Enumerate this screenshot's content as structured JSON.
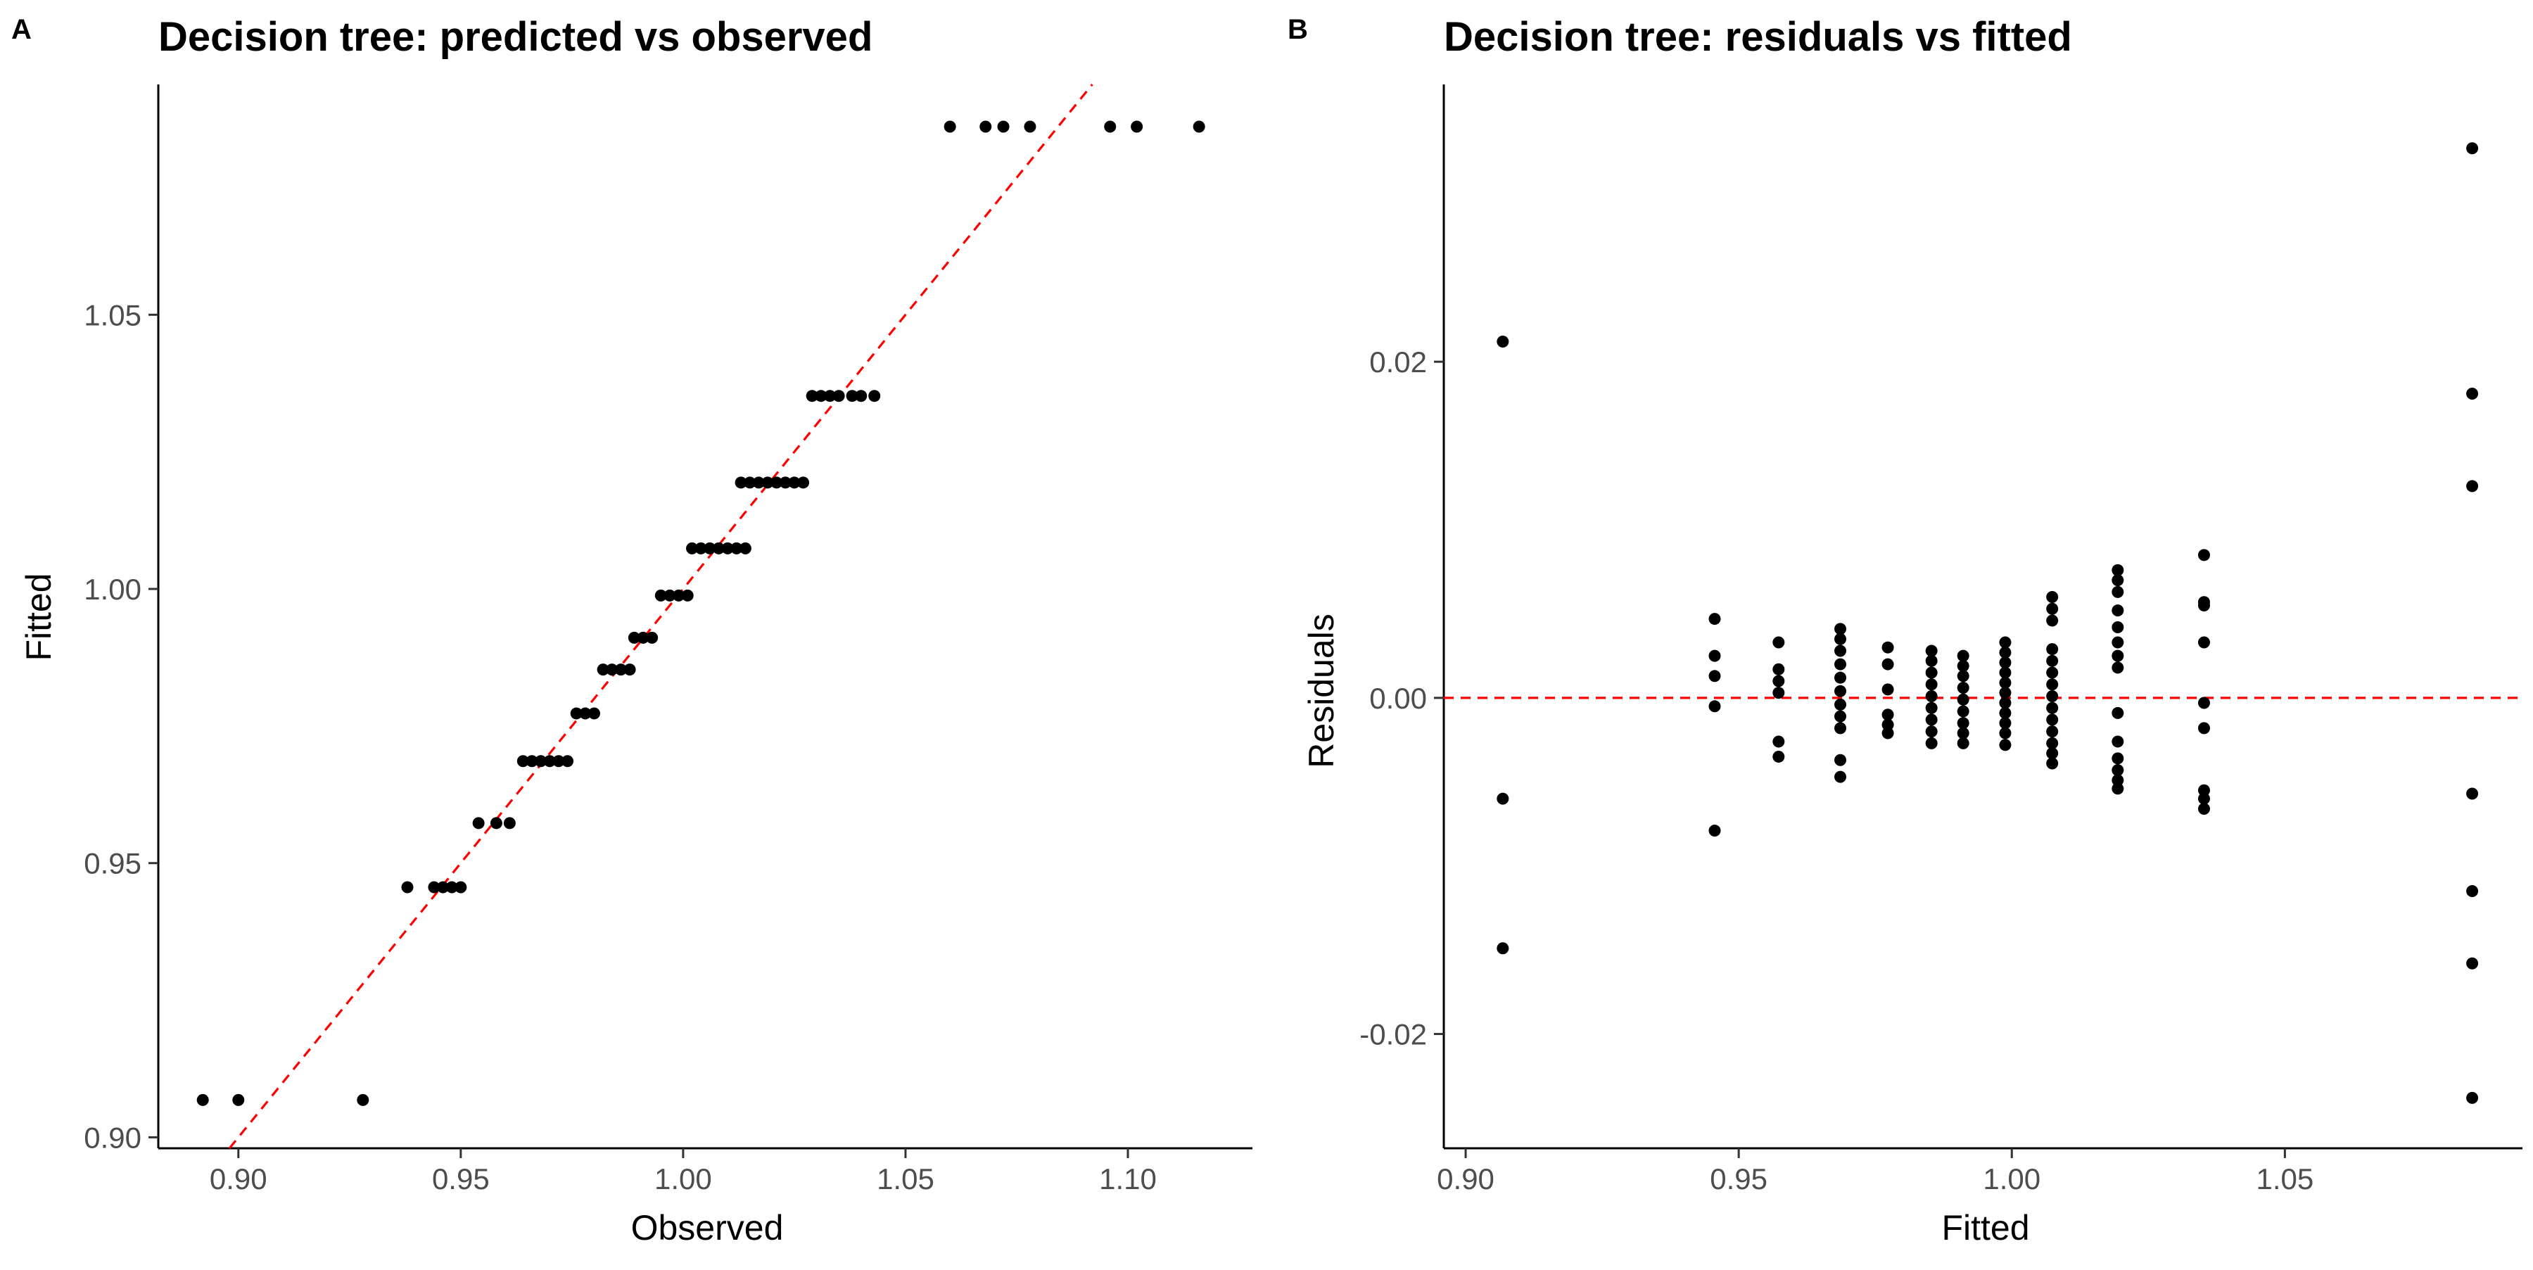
{
  "chart_data": [
    {
      "panel_label": "A",
      "type": "scatter",
      "title": "Decision tree: predicted vs observed",
      "xlabel": "Observed",
      "ylabel": "Fitted",
      "xlim": [
        0.882,
        1.128
      ],
      "ylim": [
        0.898,
        1.092
      ],
      "xticks": [
        0.9,
        0.95,
        1.0,
        1.05,
        1.1
      ],
      "xtick_labels": [
        "0.90",
        "0.95",
        "1.00",
        "1.05",
        "1.10"
      ],
      "yticks": [
        0.9,
        0.95,
        1.0,
        1.05
      ],
      "ytick_labels": [
        "0.90",
        "0.95",
        "1.00",
        "1.05"
      ],
      "grid": false,
      "reference_line": {
        "type": "identity",
        "color": "#ff0000",
        "dash": true
      },
      "series": [
        {
          "points": [
            [
              0.892,
              0.9068
            ],
            [
              0.9,
              0.9068
            ],
            [
              0.928,
              0.9068
            ],
            [
              0.938,
              0.9456
            ],
            [
              0.944,
              0.9456
            ],
            [
              0.946,
              0.9456
            ],
            [
              0.948,
              0.9456
            ],
            [
              0.95,
              0.9456
            ],
            [
              0.954,
              0.9573
            ],
            [
              0.958,
              0.9573
            ],
            [
              0.961,
              0.9573
            ],
            [
              0.964,
              0.9686
            ],
            [
              0.966,
              0.9686
            ],
            [
              0.968,
              0.9686
            ],
            [
              0.97,
              0.9686
            ],
            [
              0.972,
              0.9686
            ],
            [
              0.974,
              0.9686
            ],
            [
              0.976,
              0.9773
            ],
            [
              0.978,
              0.9773
            ],
            [
              0.98,
              0.9773
            ],
            [
              0.982,
              0.9853
            ],
            [
              0.984,
              0.9853
            ],
            [
              0.986,
              0.9853
            ],
            [
              0.988,
              0.9853
            ],
            [
              0.989,
              0.9911
            ],
            [
              0.991,
              0.9911
            ],
            [
              0.993,
              0.9911
            ],
            [
              0.995,
              0.9988
            ],
            [
              0.997,
              0.9988
            ],
            [
              0.999,
              0.9988
            ],
            [
              1.001,
              0.9988
            ],
            [
              1.002,
              1.0074
            ],
            [
              1.004,
              1.0074
            ],
            [
              1.006,
              1.0074
            ],
            [
              1.008,
              1.0074
            ],
            [
              1.01,
              1.0074
            ],
            [
              1.012,
              1.0074
            ],
            [
              1.014,
              1.0074
            ],
            [
              1.013,
              1.0194
            ],
            [
              1.015,
              1.0194
            ],
            [
              1.017,
              1.0194
            ],
            [
              1.019,
              1.0194
            ],
            [
              1.021,
              1.0194
            ],
            [
              1.023,
              1.0194
            ],
            [
              1.025,
              1.0194
            ],
            [
              1.027,
              1.0194
            ],
            [
              1.029,
              1.0352
            ],
            [
              1.031,
              1.0352
            ],
            [
              1.033,
              1.0352
            ],
            [
              1.035,
              1.0352
            ],
            [
              1.038,
              1.0352
            ],
            [
              1.04,
              1.0352
            ],
            [
              1.043,
              1.0352
            ],
            [
              1.06,
              1.0843
            ],
            [
              1.068,
              1.0843
            ],
            [
              1.072,
              1.0843
            ],
            [
              1.078,
              1.0843
            ],
            [
              1.096,
              1.0843
            ],
            [
              1.102,
              1.0843
            ],
            [
              1.116,
              1.0843
            ]
          ]
        }
      ]
    },
    {
      "panel_label": "B",
      "type": "scatter",
      "title": "Decision tree: residuals vs fitted",
      "xlabel": "Fitted",
      "ylabel": "Residuals",
      "xlim": [
        0.896,
        1.0935
      ],
      "ylim": [
        -0.0268,
        0.0365
      ],
      "xticks": [
        0.9,
        0.95,
        1.0,
        1.05
      ],
      "xtick_labels": [
        "0.90",
        "0.95",
        "1.00",
        "1.05"
      ],
      "yticks": [
        -0.02,
        0.0,
        0.02
      ],
      "ytick_labels": [
        "-0.02",
        "0.00",
        "0.02"
      ],
      "grid": false,
      "reference_line": {
        "type": "horizontal",
        "y": 0,
        "color": "#ff0000",
        "dash": true
      },
      "series": [
        {
          "points": [
            [
              0.9068,
              0.0212
            ],
            [
              0.9068,
              -0.006
            ],
            [
              0.9068,
              -0.0149
            ],
            [
              0.9456,
              0.0047
            ],
            [
              0.9456,
              0.0025
            ],
            [
              0.9456,
              0.0013
            ],
            [
              0.9456,
              -0.0005
            ],
            [
              0.9456,
              -0.0079
            ],
            [
              0.9573,
              0.0033
            ],
            [
              0.9573,
              0.0017
            ],
            [
              0.9573,
              0.001
            ],
            [
              0.9573,
              0.0003
            ],
            [
              0.9573,
              -0.0026
            ],
            [
              0.9573,
              -0.0035
            ],
            [
              0.9686,
              0.0041
            ],
            [
              0.9686,
              0.0035
            ],
            [
              0.9686,
              0.0028
            ],
            [
              0.9686,
              0.002
            ],
            [
              0.9686,
              0.0012
            ],
            [
              0.9686,
              0.0004
            ],
            [
              0.9686,
              -0.0004
            ],
            [
              0.9686,
              -0.0011
            ],
            [
              0.9686,
              -0.0018
            ],
            [
              0.9686,
              -0.0037
            ],
            [
              0.9686,
              -0.0047
            ],
            [
              0.9773,
              0.003
            ],
            [
              0.9773,
              0.002
            ],
            [
              0.9773,
              0.0005
            ],
            [
              0.9773,
              -0.001
            ],
            [
              0.9773,
              -0.0016
            ],
            [
              0.9773,
              -0.0021
            ],
            [
              0.9853,
              0.0028
            ],
            [
              0.9853,
              0.0022
            ],
            [
              0.9853,
              0.0015
            ],
            [
              0.9853,
              0.0008
            ],
            [
              0.9853,
              0.0001
            ],
            [
              0.9853,
              -0.0006
            ],
            [
              0.9853,
              -0.0013
            ],
            [
              0.9853,
              -0.002
            ],
            [
              0.9853,
              -0.0027
            ],
            [
              0.9911,
              0.0025
            ],
            [
              0.9911,
              0.0019
            ],
            [
              0.9911,
              0.0013
            ],
            [
              0.9911,
              0.0006
            ],
            [
              0.9911,
              -0.0001
            ],
            [
              0.9911,
              -0.0008
            ],
            [
              0.9911,
              -0.0015
            ],
            [
              0.9911,
              -0.0021
            ],
            [
              0.9911,
              -0.0027
            ],
            [
              0.9988,
              0.0033
            ],
            [
              0.9988,
              0.0027
            ],
            [
              0.9988,
              0.0021
            ],
            [
              0.9988,
              0.0015
            ],
            [
              0.9988,
              0.0009
            ],
            [
              0.9988,
              0.0003
            ],
            [
              0.9988,
              -0.0003
            ],
            [
              0.9988,
              -0.0009
            ],
            [
              0.9988,
              -0.0015
            ],
            [
              0.9988,
              -0.0021
            ],
            [
              0.9988,
              -0.0028
            ],
            [
              1.0074,
              0.006
            ],
            [
              1.0074,
              0.0053
            ],
            [
              1.0074,
              0.0046
            ],
            [
              1.0074,
              0.0029
            ],
            [
              1.0074,
              0.0022
            ],
            [
              1.0074,
              0.0015
            ],
            [
              1.0074,
              0.0008
            ],
            [
              1.0074,
              0.0001
            ],
            [
              1.0074,
              -0.0006
            ],
            [
              1.0074,
              -0.0013
            ],
            [
              1.0074,
              -0.002
            ],
            [
              1.0074,
              -0.0027
            ],
            [
              1.0074,
              -0.0033
            ],
            [
              1.0074,
              -0.0039
            ],
            [
              1.0194,
              0.0076
            ],
            [
              1.0194,
              0.007
            ],
            [
              1.0194,
              0.0063
            ],
            [
              1.0194,
              0.0052
            ],
            [
              1.0194,
              0.0042
            ],
            [
              1.0194,
              0.0033
            ],
            [
              1.0194,
              0.0025
            ],
            [
              1.0194,
              0.0018
            ],
            [
              1.0194,
              -0.0009
            ],
            [
              1.0194,
              -0.0026
            ],
            [
              1.0194,
              -0.0036
            ],
            [
              1.0194,
              -0.0043
            ],
            [
              1.0194,
              -0.0049
            ],
            [
              1.0194,
              -0.0054
            ],
            [
              1.0352,
              0.0085
            ],
            [
              1.0352,
              0.0057
            ],
            [
              1.0352,
              0.0055
            ],
            [
              1.0352,
              0.0033
            ],
            [
              1.0352,
              -0.0003
            ],
            [
              1.0352,
              -0.0018
            ],
            [
              1.0352,
              -0.0055
            ],
            [
              1.0352,
              -0.006
            ],
            [
              1.0352,
              -0.0066
            ],
            [
              1.0843,
              0.0327
            ],
            [
              1.0843,
              0.0181
            ],
            [
              1.0843,
              0.0126
            ],
            [
              1.0843,
              -0.0057
            ],
            [
              1.0843,
              -0.0115
            ],
            [
              1.0843,
              -0.0158
            ],
            [
              1.0843,
              -0.0238
            ]
          ]
        }
      ]
    }
  ]
}
